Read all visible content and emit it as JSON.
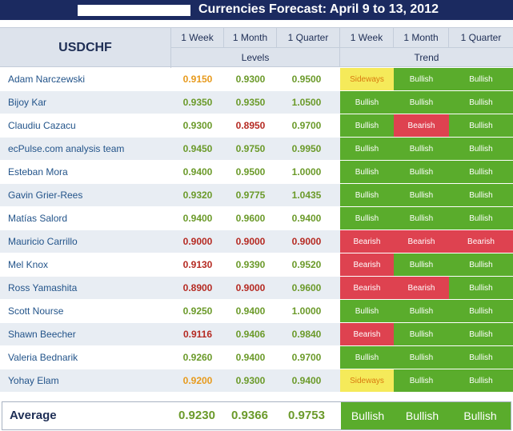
{
  "title": "Currencies Forecast: April 9 to 13, 2012",
  "pair": "USDCHF",
  "columns": [
    "1 Week",
    "1 Month",
    "1 Quarter",
    "1 Week",
    "1 Month",
    "1 Quarter"
  ],
  "groups": {
    "levels": "Levels",
    "trend": "Trend"
  },
  "colors": {
    "bullish": "#5aac2c",
    "bearish": "#de4250",
    "sideways": "#f5ea5a",
    "level_neutral": "#6b9a2a",
    "level_up": "#e79a1c",
    "level_down": "#b52a22"
  },
  "rows": [
    {
      "name": "Adam Narczewski",
      "levels": [
        {
          "value": "0.9150",
          "tone": "up"
        },
        {
          "value": "0.9300",
          "tone": "neutral"
        },
        {
          "value": "0.9500",
          "tone": "neutral"
        }
      ],
      "trend": [
        "Sideways",
        "Bullish",
        "Bullish"
      ]
    },
    {
      "name": "Bijoy Kar",
      "levels": [
        {
          "value": "0.9350",
          "tone": "neutral"
        },
        {
          "value": "0.9350",
          "tone": "neutral"
        },
        {
          "value": "1.0500",
          "tone": "neutral"
        }
      ],
      "trend": [
        "Bullish",
        "Bullish",
        "Bullish"
      ]
    },
    {
      "name": "Claudiu Cazacu",
      "levels": [
        {
          "value": "0.9300",
          "tone": "neutral"
        },
        {
          "value": "0.8950",
          "tone": "down"
        },
        {
          "value": "0.9700",
          "tone": "neutral"
        }
      ],
      "trend": [
        "Bullish",
        "Bearish",
        "Bullish"
      ]
    },
    {
      "name": "ecPulse.com analysis team",
      "levels": [
        {
          "value": "0.9450",
          "tone": "neutral"
        },
        {
          "value": "0.9750",
          "tone": "neutral"
        },
        {
          "value": "0.9950",
          "tone": "neutral"
        }
      ],
      "trend": [
        "Bullish",
        "Bullish",
        "Bullish"
      ]
    },
    {
      "name": "Esteban Mora",
      "levels": [
        {
          "value": "0.9400",
          "tone": "neutral"
        },
        {
          "value": "0.9500",
          "tone": "neutral"
        },
        {
          "value": "1.0000",
          "tone": "neutral"
        }
      ],
      "trend": [
        "Bullish",
        "Bullish",
        "Bullish"
      ]
    },
    {
      "name": "Gavin Grier-Rees",
      "levels": [
        {
          "value": "0.9320",
          "tone": "neutral"
        },
        {
          "value": "0.9775",
          "tone": "neutral"
        },
        {
          "value": "1.0435",
          "tone": "neutral"
        }
      ],
      "trend": [
        "Bullish",
        "Bullish",
        "Bullish"
      ]
    },
    {
      "name": "Matías Salord",
      "levels": [
        {
          "value": "0.9400",
          "tone": "neutral"
        },
        {
          "value": "0.9600",
          "tone": "neutral"
        },
        {
          "value": "0.9400",
          "tone": "neutral"
        }
      ],
      "trend": [
        "Bullish",
        "Bullish",
        "Bullish"
      ]
    },
    {
      "name": "Mauricio Carrillo",
      "levels": [
        {
          "value": "0.9000",
          "tone": "down"
        },
        {
          "value": "0.9000",
          "tone": "down"
        },
        {
          "value": "0.9000",
          "tone": "down"
        }
      ],
      "trend": [
        "Bearish",
        "Bearish",
        "Bearish"
      ]
    },
    {
      "name": "Mel Knox",
      "levels": [
        {
          "value": "0.9130",
          "tone": "down"
        },
        {
          "value": "0.9390",
          "tone": "neutral"
        },
        {
          "value": "0.9520",
          "tone": "neutral"
        }
      ],
      "trend": [
        "Bearish",
        "Bullish",
        "Bullish"
      ]
    },
    {
      "name": "Ross Yamashita",
      "levels": [
        {
          "value": "0.8900",
          "tone": "down"
        },
        {
          "value": "0.9000",
          "tone": "down"
        },
        {
          "value": "0.9600",
          "tone": "neutral"
        }
      ],
      "trend": [
        "Bearish",
        "Bearish",
        "Bullish"
      ]
    },
    {
      "name": "Scott Nourse",
      "levels": [
        {
          "value": "0.9250",
          "tone": "neutral"
        },
        {
          "value": "0.9400",
          "tone": "neutral"
        },
        {
          "value": "1.0000",
          "tone": "neutral"
        }
      ],
      "trend": [
        "Bullish",
        "Bullish",
        "Bullish"
      ]
    },
    {
      "name": "Shawn Beecher",
      "levels": [
        {
          "value": "0.9116",
          "tone": "down"
        },
        {
          "value": "0.9406",
          "tone": "neutral"
        },
        {
          "value": "0.9840",
          "tone": "neutral"
        }
      ],
      "trend": [
        "Bearish",
        "Bullish",
        "Bullish"
      ]
    },
    {
      "name": "Valeria Bednarik",
      "levels": [
        {
          "value": "0.9260",
          "tone": "neutral"
        },
        {
          "value": "0.9400",
          "tone": "neutral"
        },
        {
          "value": "0.9700",
          "tone": "neutral"
        }
      ],
      "trend": [
        "Bullish",
        "Bullish",
        "Bullish"
      ]
    },
    {
      "name": "Yohay Elam",
      "levels": [
        {
          "value": "0.9200",
          "tone": "up"
        },
        {
          "value": "0.9300",
          "tone": "neutral"
        },
        {
          "value": "0.9400",
          "tone": "neutral"
        }
      ],
      "trend": [
        "Sideways",
        "Bullish",
        "Bullish"
      ]
    }
  ],
  "average": {
    "label": "Average",
    "levels": [
      "0.9230",
      "0.9366",
      "0.9753"
    ],
    "trend": [
      "Bullish",
      "Bullish",
      "Bullish"
    ]
  }
}
